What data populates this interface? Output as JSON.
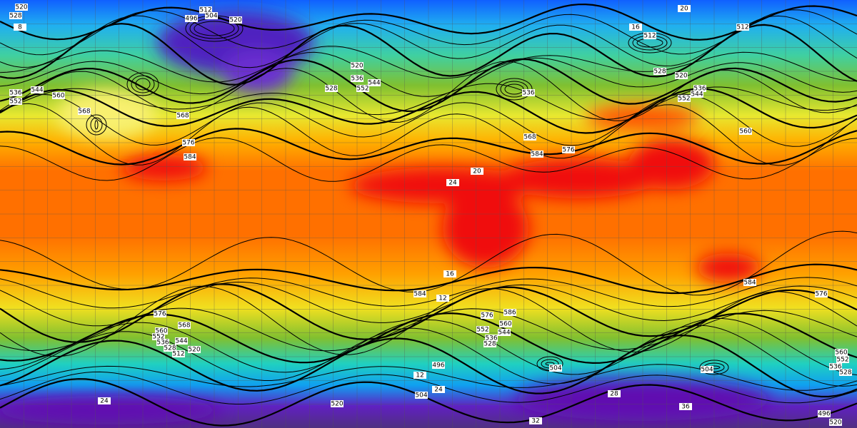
{
  "map": {
    "labels": [
      "520",
      "528",
      "512",
      "504",
      "496",
      "520",
      "20",
      "16",
      "512",
      "512",
      "8",
      "536",
      "544",
      "560",
      "552",
      "568",
      "568",
      "576",
      "584",
      "520",
      "536",
      "544",
      "552",
      "528",
      "536",
      "528",
      "520",
      "536",
      "544",
      "552",
      "560",
      "568",
      "576",
      "584",
      "20",
      "24",
      "16",
      "12",
      "584",
      "576",
      "586",
      "552",
      "560",
      "544",
      "536",
      "528",
      "584",
      "576",
      "576",
      "568",
      "560",
      "552",
      "544",
      "536",
      "528",
      "512",
      "520",
      "496",
      "504",
      "504",
      "12",
      "504",
      "520",
      "24",
      "24",
      "28",
      "32",
      "36",
      "560",
      "552",
      "536",
      "528",
      "496",
      "520"
    ]
  }
}
